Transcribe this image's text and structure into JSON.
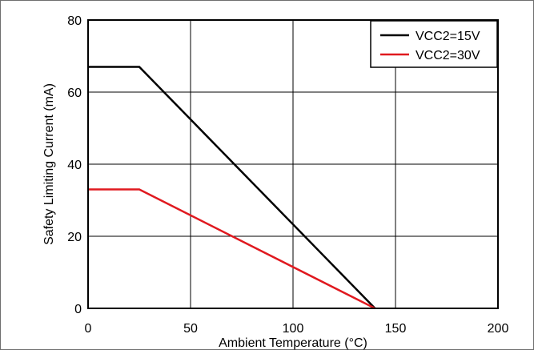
{
  "chart_data": {
    "type": "line",
    "title": "",
    "xlabel": "Ambient Temperature (°C)",
    "ylabel": "Safety Limiting Current (mA)",
    "xlim": [
      0,
      200
    ],
    "ylim": [
      0,
      80
    ],
    "xticks": [
      0,
      50,
      100,
      150,
      200
    ],
    "yticks": [
      0,
      20,
      40,
      60,
      80
    ],
    "grid": true,
    "legend_position": "top-right",
    "series": [
      {
        "name": "VCC2=15V",
        "color": "#000000",
        "x": [
          0,
          25,
          140
        ],
        "y": [
          67,
          67,
          0
        ]
      },
      {
        "name": "VCC2=30V",
        "color": "#e0191f",
        "x": [
          0,
          25,
          140
        ],
        "y": [
          33,
          33,
          0
        ]
      }
    ]
  }
}
